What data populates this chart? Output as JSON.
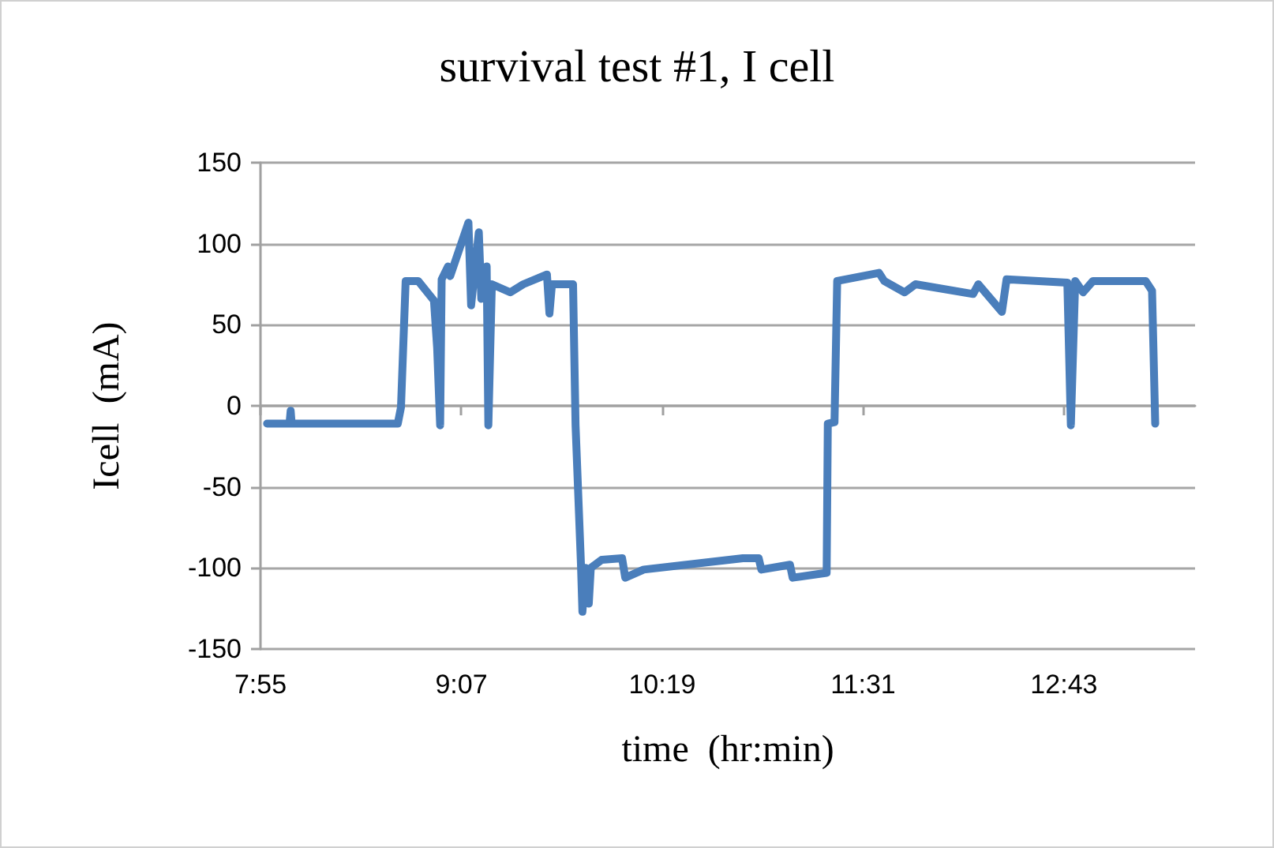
{
  "chart_data": {
    "type": "line",
    "title": "survival test #1, I cell",
    "xlabel": "time  (hr:min)",
    "ylabel": "Icell  (mA)",
    "xlim": [
      7.9167,
      13.5
    ],
    "xticks": [
      {
        "value": 7.9167,
        "label": "7:55"
      },
      {
        "value": 9.1167,
        "label": "9:07"
      },
      {
        "value": 10.3167,
        "label": "10:19"
      },
      {
        "value": 11.5167,
        "label": "11:31"
      },
      {
        "value": 12.7167,
        "label": "12:43"
      }
    ],
    "ylim": [
      -150,
      150
    ],
    "yticks": [
      -150,
      -100,
      -50,
      0,
      50,
      100,
      150
    ],
    "grid": "y",
    "marker": "none",
    "line_style": "solid",
    "series": [
      {
        "color": "#4a7ebb",
        "x": [
          7.956,
          8.09,
          8.097,
          8.103,
          8.737,
          8.756,
          8.784,
          8.859,
          8.953,
          8.972,
          8.99,
          8.999,
          9.037,
          9.05,
          9.159,
          9.175,
          9.221,
          9.236,
          9.268,
          9.278,
          9.299,
          9.409,
          9.487,
          9.628,
          9.643,
          9.658,
          9.784,
          9.799,
          9.831,
          9.84,
          9.859,
          9.878,
          9.89,
          9.955,
          10.077,
          10.096,
          10.206,
          10.799,
          10.893,
          10.909,
          11.08,
          11.096,
          11.299,
          11.306,
          11.346,
          11.362,
          11.612,
          11.643,
          11.765,
          11.83,
          12.174,
          12.205,
          12.346,
          12.374,
          12.737,
          12.758,
          12.784,
          12.831,
          12.89,
          13.205,
          13.243,
          13.262
        ],
        "values": [
          -11,
          -11,
          -3,
          -11,
          -11,
          -1,
          77,
          77,
          65,
          36,
          -12,
          78,
          86,
          80,
          113,
          62,
          107,
          66,
          86,
          -12,
          75,
          70,
          75,
          81,
          57,
          75,
          75,
          -12,
          -97,
          -127,
          -100,
          -122,
          -100,
          -95,
          -94,
          -106,
          -101,
          -94,
          -94,
          -101,
          -98,
          -106,
          -103,
          -11,
          -10,
          77,
          82,
          77,
          70,
          75,
          69,
          75,
          58,
          78,
          76,
          -12,
          77,
          70,
          77,
          77,
          71,
          -11
        ]
      }
    ]
  }
}
